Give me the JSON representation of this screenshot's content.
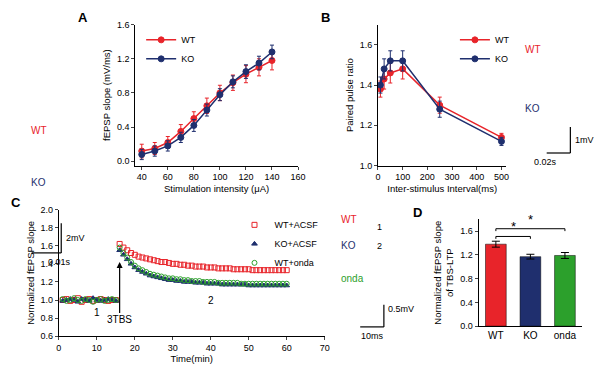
{
  "chart_data": [
    {
      "label": "A",
      "type": "line",
      "xlabel": "Stimulation intensity (μA)",
      "ylabel": "fEPSP slope (mV/ms)",
      "xlim": [
        35,
        160
      ],
      "xticks": [
        40,
        60,
        80,
        100,
        120,
        140,
        160
      ],
      "ylim": [
        -0.05,
        1.6
      ],
      "yticks": [
        {
          "value": 0,
          "label": "0.0"
        },
        0.4,
        0.8,
        1.2,
        1.6
      ],
      "x": [
        40,
        50,
        60,
        70,
        80,
        90,
        100,
        110,
        120,
        130,
        140
      ],
      "series": [
        {
          "name": "WT",
          "color": "#e8242a",
          "marker": "circle",
          "line_style": "solid",
          "values": [
            0.12,
            0.15,
            0.22,
            0.35,
            0.5,
            0.65,
            0.8,
            0.92,
            1.02,
            1.1,
            1.18
          ],
          "error": [
            0.08,
            0.07,
            0.07,
            0.08,
            0.08,
            0.09,
            0.09,
            0.09,
            0.1,
            0.1,
            0.11
          ]
        },
        {
          "name": "KO",
          "color": "#1f2f6e",
          "marker": "circle",
          "line_style": "solid",
          "values": [
            0.08,
            0.12,
            0.18,
            0.28,
            0.42,
            0.6,
            0.78,
            0.93,
            1.05,
            1.15,
            1.28
          ],
          "error": [
            0.06,
            0.06,
            0.06,
            0.06,
            0.07,
            0.07,
            0.07,
            0.07,
            0.08,
            0.08,
            0.08
          ]
        }
      ],
      "inset": {
        "labels": [
          {
            "text": "WT",
            "color": "#e8242a"
          },
          {
            "text": "KO",
            "color": "#1f2f6e"
          }
        ],
        "scale_y": "2mV",
        "scale_x": "0.01s"
      }
    },
    {
      "label": "B",
      "type": "line",
      "xlabel": "Inter-stimulus Interval(ms)",
      "ylabel": "Paired pulse ratio",
      "xlim": [
        0,
        520
      ],
      "xticks": [
        0,
        100,
        200,
        300,
        400,
        500
      ],
      "ylim": [
        1.0,
        1.7
      ],
      "yticks": [
        {
          "value": 1.0,
          "label": "1.0"
        },
        1.2,
        1.4,
        1.6
      ],
      "x": [
        10,
        25,
        50,
        100,
        250,
        500
      ],
      "series": [
        {
          "name": "WT",
          "color": "#e8242a",
          "marker": "circle",
          "line_style": "solid",
          "values": [
            1.38,
            1.43,
            1.46,
            1.48,
            1.3,
            1.14
          ],
          "error": [
            0.04,
            0.05,
            0.05,
            0.05,
            0.04,
            0.02
          ]
        },
        {
          "name": "KO",
          "color": "#1f2f6e",
          "marker": "circle",
          "line_style": "solid",
          "values": [
            1.4,
            1.48,
            1.52,
            1.52,
            1.28,
            1.12
          ],
          "error": [
            0.04,
            0.05,
            0.05,
            0.05,
            0.04,
            0.02
          ]
        }
      ],
      "inset": {
        "labels": [
          {
            "text": "WT",
            "color": "#e8242a"
          },
          {
            "text": "KO",
            "color": "#1f2f6e"
          }
        ],
        "scale_y": "1mV",
        "scale_x": "0.02s"
      }
    },
    {
      "label": "C",
      "type": "scatter",
      "xlabel": "Time(min)",
      "ylabel": "Normalized fEPSP slope",
      "xlim": [
        0,
        70
      ],
      "xticks": [
        0,
        10,
        20,
        30,
        40,
        50,
        60,
        70
      ],
      "ylim": [
        0.6,
        2.0
      ],
      "yticks": [
        0.6,
        0.8,
        {
          "value": 1.0,
          "label": "1.0"
        },
        1.2,
        1.4,
        1.6,
        1.8,
        {
          "value": 2.0,
          "label": "2.0"
        }
      ],
      "x": [
        1,
        2,
        3,
        4,
        5,
        6,
        7,
        8,
        9,
        10,
        11,
        12,
        13,
        14,
        15,
        16,
        17,
        18,
        19,
        20,
        21,
        22,
        23,
        24,
        25,
        26,
        27,
        28,
        29,
        30,
        31,
        32,
        33,
        34,
        35,
        36,
        37,
        38,
        39,
        40,
        41,
        42,
        43,
        44,
        45,
        46,
        47,
        48,
        49,
        50,
        51,
        52,
        53,
        54,
        55,
        56,
        57,
        58,
        59,
        60
      ],
      "series": [
        {
          "name": "WT+ACSF",
          "color": "#e8242a",
          "marker": "square-open",
          "values": [
            1.0,
            1.01,
            0.99,
            1.0,
            1.02,
            0.98,
            1.0,
            1.01,
            0.99,
            1.0,
            1.01,
            1.0,
            0.99,
            1.0,
            1.0,
            1.62,
            1.58,
            1.55,
            1.52,
            1.5,
            1.48,
            1.47,
            1.46,
            1.45,
            1.44,
            1.43,
            1.42,
            1.42,
            1.41,
            1.4,
            1.4,
            1.39,
            1.39,
            1.38,
            1.38,
            1.37,
            1.37,
            1.37,
            1.36,
            1.36,
            1.36,
            1.35,
            1.35,
            1.35,
            1.35,
            1.34,
            1.34,
            1.34,
            1.34,
            1.34,
            1.33,
            1.33,
            1.33,
            1.33,
            1.33,
            1.33,
            1.33,
            1.33,
            1.33,
            1.33
          ]
        },
        {
          "name": "KO+ACSF",
          "color": "#1f2f6e",
          "marker": "triangle-up",
          "values": [
            0.99,
            1.0,
            1.01,
            1.0,
            0.98,
            1.01,
            1.0,
            0.99,
            1.02,
            1.0,
            0.99,
            1.0,
            1.01,
            1.0,
            0.99,
            1.55,
            1.5,
            1.45,
            1.4,
            1.36,
            1.33,
            1.31,
            1.29,
            1.27,
            1.26,
            1.25,
            1.24,
            1.23,
            1.22,
            1.22,
            1.21,
            1.21,
            1.2,
            1.2,
            1.2,
            1.19,
            1.19,
            1.19,
            1.18,
            1.18,
            1.18,
            1.18,
            1.17,
            1.17,
            1.17,
            1.17,
            1.17,
            1.17,
            1.17,
            1.16,
            1.16,
            1.16,
            1.16,
            1.16,
            1.16,
            1.16,
            1.16,
            1.16,
            1.16,
            1.16
          ]
        },
        {
          "name": "WT+onda",
          "color": "#2ca02c",
          "marker": "circle-open",
          "values": [
            1.01,
            0.99,
            1.0,
            1.02,
            1.0,
            0.99,
            1.01,
            1.0,
            0.98,
            1.0,
            1.01,
            0.99,
            1.0,
            1.01,
            1.0,
            1.58,
            1.52,
            1.47,
            1.42,
            1.38,
            1.35,
            1.33,
            1.31,
            1.29,
            1.28,
            1.27,
            1.26,
            1.25,
            1.24,
            1.24,
            1.23,
            1.23,
            1.22,
            1.22,
            1.21,
            1.21,
            1.21,
            1.2,
            1.2,
            1.2,
            1.2,
            1.19,
            1.19,
            1.19,
            1.19,
            1.19,
            1.19,
            1.18,
            1.18,
            1.18,
            1.18,
            1.18,
            1.18,
            1.18,
            1.18,
            1.18,
            1.18,
            1.18,
            1.18,
            1.18
          ]
        }
      ],
      "annotations": [
        {
          "x": 10,
          "y": 0.86,
          "text": "1"
        },
        {
          "x": 40,
          "y": 1.0,
          "text": "2"
        }
      ],
      "arrow": {
        "x": 16,
        "y": 1.42,
        "from_y": 0.78,
        "text": "3TBS"
      },
      "inset": {
        "labels": [
          {
            "text": "WT",
            "color": "#e8242a"
          },
          {
            "text": "KO",
            "color": "#1f2f6e"
          },
          {
            "text": "onda",
            "color": "#2ca02c"
          }
        ],
        "trace_marks": [
          "1",
          "2"
        ],
        "scale_y": "0.5mV",
        "scale_x": "10ms"
      }
    },
    {
      "label": "D",
      "type": "bar",
      "ylabel": [
        "Normalized fEPSP slope",
        "of TBS-LTP"
      ],
      "categories": [
        "WT",
        "KO",
        "onda"
      ],
      "values": [
        1.38,
        1.17,
        1.19
      ],
      "error": [
        0.05,
        0.04,
        0.05
      ],
      "colors": [
        "#e8242a",
        "#1f2f6e",
        "#2ca02c"
      ],
      "ylim": [
        0,
        1.8
      ],
      "yticks": [
        {
          "value": 0,
          "label": "0.0"
        },
        0.4,
        0.8,
        1.2,
        1.6
      ],
      "significance": [
        {
          "pair": [
            0,
            1
          ],
          "label": "*"
        },
        {
          "pair": [
            0,
            2
          ],
          "label": "*"
        }
      ]
    }
  ]
}
